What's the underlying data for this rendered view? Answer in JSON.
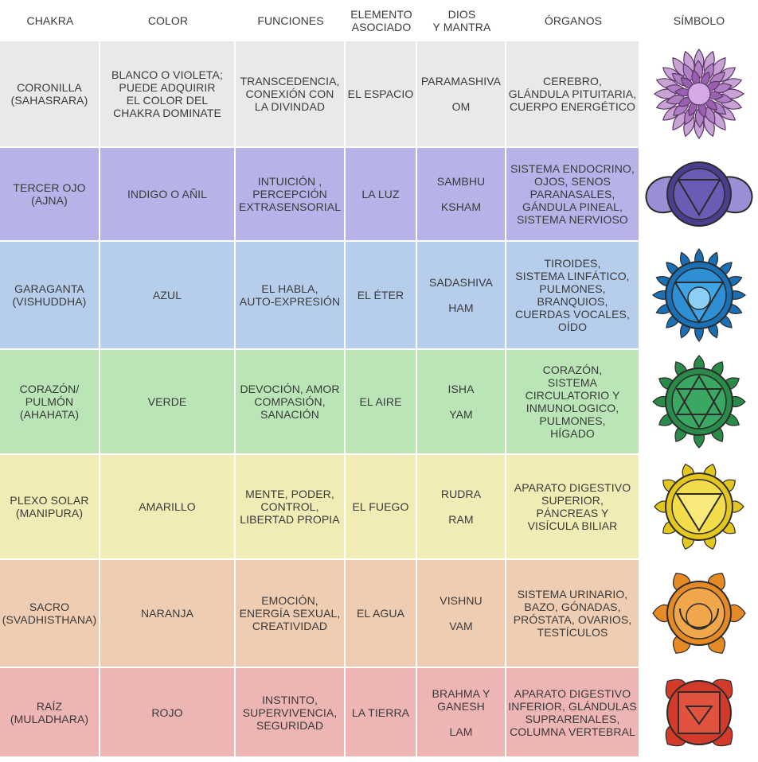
{
  "headers": {
    "chakra": "CHAKRA",
    "color": "COLOR",
    "funciones": "FUNCIONES",
    "elemento": "ELEMENTO\nASOCIADO",
    "dios": "DIOS\nY MANTRA",
    "organos": "ÓRGANOS",
    "simbolo": "SÍMBOLO"
  },
  "rows": [
    {
      "chakra": "CORONILLA\n(SAHASRARA)",
      "color": "BLANCO O VIOLETA;\nPUEDE ADQUIRIR\nEL COLOR DEL\nCHAKRA DOMINATE",
      "funciones": "TRANSCEDENCIA,\nCONEXIÓN CON\nLA DIVINDAD",
      "elemento": "EL ESPACIO",
      "dios": "PARAMASHIVA",
      "mantra": "OM",
      "organos": "CEREBRO,\nGLÁNDULA PITUITARIA,\nCUERPO ENERGÉTICO",
      "row_color": "#e9e9e9",
      "symbol_icon": "crown-chakra-lotus-icon",
      "symbol_color": "#8e4a9e"
    },
    {
      "chakra": "TERCER OJO\n(AJNA)",
      "color": "INDIGO O AÑIL",
      "funciones": "INTUICIÓN ,\nPERCEPCIÓN\nEXTRASENSORIAL",
      "elemento": "LA LUZ",
      "dios": "SAMBHU",
      "mantra": "KSHAM",
      "organos": "SISTEMA ENDOCRINO,\nOJOS, SENOS\nPARANASALES,\nGÁNDULA PINEAL,\nSISTEMA NERVIOSO",
      "row_color": "#b7b2e8",
      "symbol_icon": "third-eye-chakra-icon",
      "symbol_color": "#4c3d8f"
    },
    {
      "chakra": "GARAGANTA\n(VISHUDDHA)",
      "color": "AZUL",
      "funciones": "EL HABLA,\nAUTO-EXPRESIÓN",
      "elemento": "EL ÉTER",
      "dios": "SADASHIVA",
      "mantra": "HAM",
      "organos": "TIROIDES,\nSISTEMA LINFÁTICO,\nPULMONES,\nBRANQUIOS,\nCUERDAS VOCALES,\nOÍDO",
      "row_color": "#b6cdec",
      "symbol_icon": "throat-chakra-icon",
      "symbol_color": "#1a6fb5"
    },
    {
      "chakra": "CORAZÓN/\nPULMÓN\n(AHAHATA)",
      "color": "VERDE",
      "funciones": "DEVOCIÓN, AMOR\nCOMPASIÓN,\nSANACIÓN",
      "elemento": "EL AIRE",
      "dios": "ISHA",
      "mantra": "YAM",
      "organos": "CORAZÓN,\nSISTEMA\nCIRCULATORIO Y\nINMUNOLOGICO,\nPULMONES,\nHÍGADO",
      "row_color": "#b9e5b7",
      "symbol_icon": "heart-chakra-icon",
      "symbol_color": "#2a8a4a"
    },
    {
      "chakra": "PLEXO SOLAR\n(MANIPURA)",
      "color": "AMARILLO",
      "funciones": "MENTE, PODER,\nCONTROL,\nLIBERTAD PROPIA",
      "elemento": "EL FUEGO",
      "dios": "RUDRA",
      "mantra": "RAM",
      "organos": "APARATO DIGESTIVO\nSUPERIOR,\nPÁNCREAS Y\nVISÍCULA BILIAR",
      "row_color": "#f1ecb5",
      "symbol_icon": "solar-plexus-chakra-icon",
      "symbol_color": "#e3c61e"
    },
    {
      "chakra": "SACRO\n(SVADHISTHANA)",
      "color": "NARANJA",
      "funciones": "EMOCIÓN,\nENERGÍA SEXUAL,\nCREATIVIDAD",
      "elemento": "EL AGUA",
      "dios": "VISHNU",
      "mantra": "VAM",
      "organos": "SISTEMA URINARIO,\nBAZO, GÓNADAS,\nPRÓSTATA, OVARIOS,\nTESTÍCULOS",
      "row_color": "#efcdb2",
      "symbol_icon": "sacral-chakra-icon",
      "symbol_color": "#e58a25"
    },
    {
      "chakra": "RAÍZ\n(MULADHARA)",
      "color": "ROJO",
      "funciones": "INSTINTO,\nSUPERVIVENCIA,\nSEGURIDAD",
      "elemento": "LA TIERRA",
      "dios": "BRAHMA Y\nGANESH",
      "mantra": "LAM",
      "organos": "APARATO DIGESTIVO\nINFERIOR, GLÁNDULAS\nSUPRARENALES,\nCOLUMNA VERTEBRAL",
      "row_color": "#eeb5b5",
      "symbol_icon": "root-chakra-icon",
      "symbol_color": "#d23a2a"
    }
  ]
}
